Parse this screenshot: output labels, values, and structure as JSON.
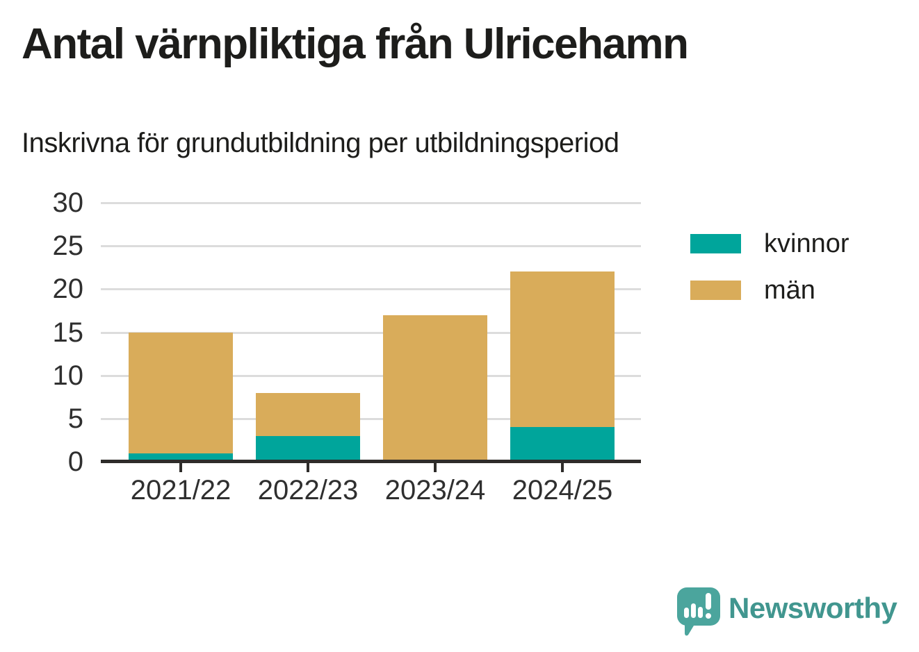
{
  "header": {
    "title": "Antal värnpliktiga från Ulricehamn",
    "subtitle": "Inskrivna för grundutbildning per utbildningsperiod"
  },
  "chart_data": {
    "type": "bar",
    "stacked": true,
    "title": "Antal värnpliktiga från Ulricehamn",
    "subtitle": "Inskrivna för grundutbildning per utbildningsperiod",
    "categories": [
      "2021/22",
      "2022/23",
      "2023/24",
      "2024/25"
    ],
    "series": [
      {
        "name": "kvinnor",
        "color": "#00a59b",
        "values": [
          1,
          3,
          0,
          4
        ]
      },
      {
        "name": "män",
        "color": "#d9ac5a",
        "values": [
          14,
          5,
          17,
          18
        ]
      }
    ],
    "totals": [
      15,
      8,
      17,
      22
    ],
    "xlabel": "",
    "ylabel": "",
    "ylim": [
      0,
      30
    ],
    "yticks": [
      0,
      5,
      10,
      15,
      20,
      25,
      30
    ],
    "grid": true,
    "legend_position": "right"
  },
  "branding": {
    "logo_text": "Newsworthy",
    "logo_icon": "newsworthy-speech-bubble-bar-chart-icon",
    "text_color": "#41968f",
    "mark_color": "#4ba59d"
  },
  "colors": {
    "background": "#ffffff",
    "grid": "#dcdcdc",
    "axis": "#2e2c2a",
    "axis_text": "#2f2f2f",
    "text": "#1d1d1b"
  }
}
